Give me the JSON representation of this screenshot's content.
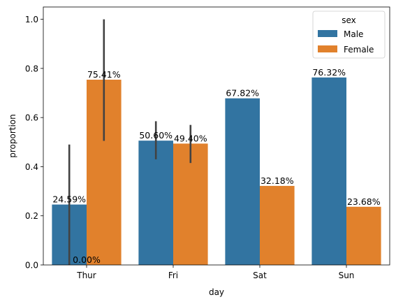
{
  "chart_data": {
    "type": "bar",
    "title": "",
    "xlabel": "day",
    "ylabel": "proportion",
    "ylim": [
      0,
      1.05
    ],
    "yticks": [
      "0.0",
      "0.2",
      "0.4",
      "0.6",
      "0.8",
      "1.0"
    ],
    "categories": [
      "Thur",
      "Fri",
      "Sat",
      "Sun"
    ],
    "legend": {
      "title": "sex",
      "placement": "top-right"
    },
    "series": [
      {
        "name": "Male",
        "color": "#3274a1",
        "values": [
          0.2459,
          0.506,
          0.6782,
          0.7632
        ],
        "labels": [
          "24.59%",
          "50.60%",
          "67.82%",
          "76.32%"
        ],
        "error_bars": [
          [
            0.0,
            0.49
          ],
          [
            0.43,
            0.585
          ],
          null,
          null
        ]
      },
      {
        "name": "Female",
        "color": "#e1812c",
        "values": [
          0.7541,
          0.494,
          0.3218,
          0.2368
        ],
        "labels": [
          "75.41%",
          "49.40%",
          "32.18%",
          "23.68%"
        ],
        "error_bars": [
          [
            0.505,
            1.0
          ],
          [
            0.415,
            0.57
          ],
          null,
          null
        ]
      }
    ],
    "extra_annotations": [
      {
        "text": "0.00%",
        "category": "Thur",
        "y": 0.0
      }
    ]
  }
}
